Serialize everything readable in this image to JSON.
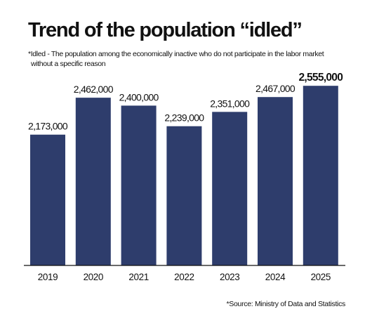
{
  "title": "Trend of the population “idled”",
  "footnote": {
    "line1": "*Idled - The population among the economically inactive who do not participate in the labor market",
    "line2": "without a specific reason"
  },
  "source": "*Source: Ministry of Data and Statistics",
  "colors": {
    "bar": "#2e3d6c",
    "axis": "#111111",
    "text": "#111111"
  },
  "chart_data": {
    "type": "bar",
    "title": "Trend of the population “idled”",
    "xlabel": "",
    "ylabel": "",
    "categories": [
      "2019",
      "2020",
      "2021",
      "2022",
      "2023",
      "2024",
      "2025"
    ],
    "values": [
      2173000,
      2462000,
      2400000,
      2239000,
      2351000,
      2467000,
      2555000
    ],
    "data_labels": [
      "2,173,000",
      "2,462,000",
      "2,400,000",
      "2,239,000",
      "2,351,000",
      "2,467,000",
      "2,555,000"
    ],
    "ylim": [
      1150000,
      2600000
    ],
    "grid": false,
    "legend": "none",
    "highlight_last": true
  }
}
